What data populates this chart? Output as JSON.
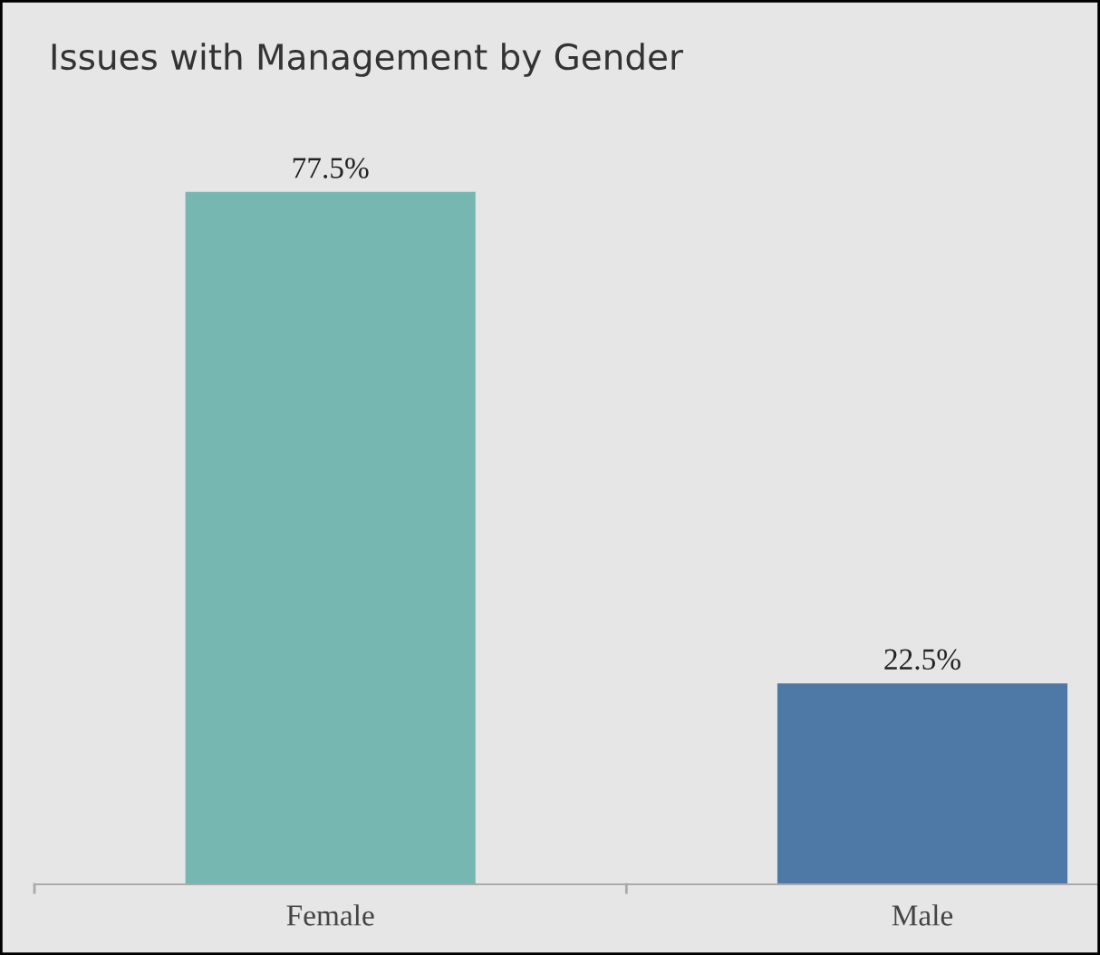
{
  "chart_data": {
    "type": "bar",
    "title": "Issues with Management by Gender",
    "categories": [
      "Female",
      "Male"
    ],
    "values": [
      77.5,
      22.5
    ],
    "colors": [
      "#76b7b2",
      "#4e79a7"
    ],
    "value_labels": [
      "77.5%",
      "22.5%"
    ],
    "grid": false,
    "legend": false
  }
}
